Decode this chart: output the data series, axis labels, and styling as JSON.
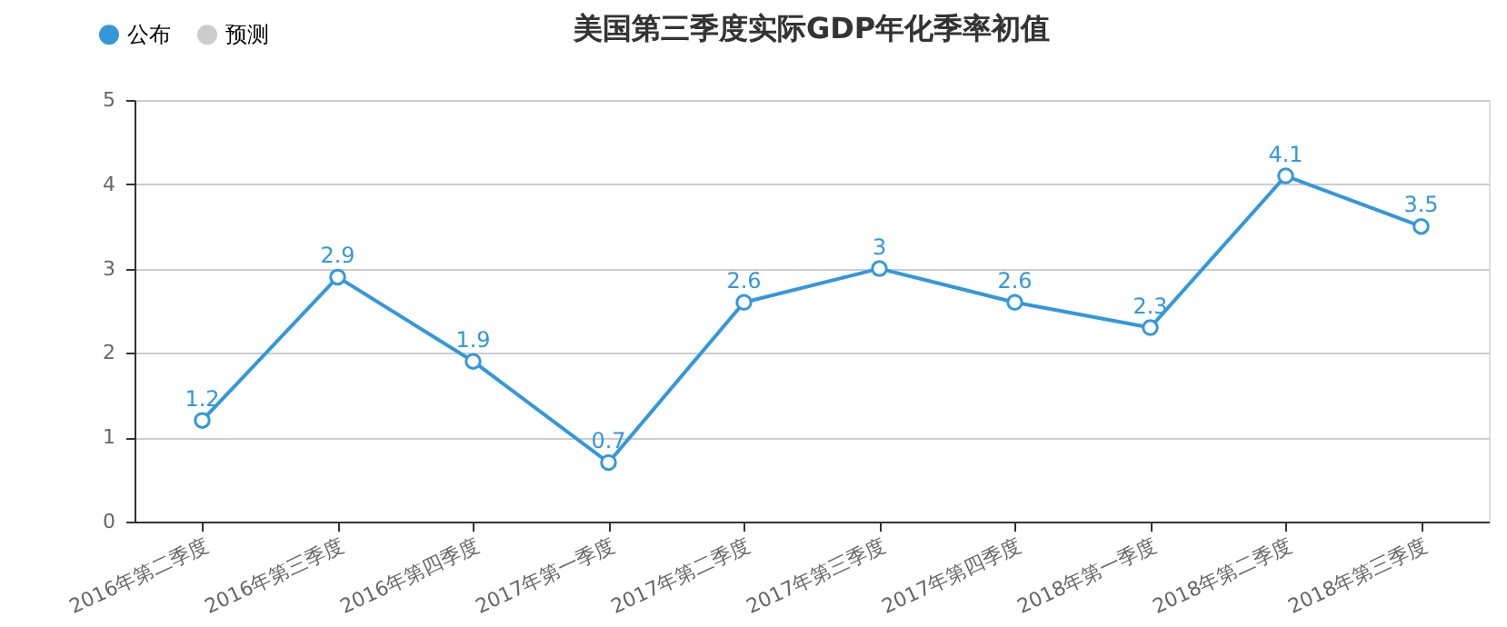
{
  "chart_data": {
    "type": "line",
    "title": "美国第三季度实际GDP年化季率初值",
    "categories": [
      "2016年第二季度",
      "2016年第三季度",
      "2016年第四季度",
      "2017年第一季度",
      "2017年第二季度",
      "2017年第三季度",
      "2017年第四季度",
      "2018年第一季度",
      "2018年第二季度",
      "2018年第三季度"
    ],
    "series": [
      {
        "name": "公布",
        "color": "#3398db",
        "values": [
          1.2,
          2.9,
          1.9,
          0.7,
          2.6,
          3,
          2.6,
          2.3,
          4.1,
          3.5
        ]
      },
      {
        "name": "预测",
        "color": "#cccccc",
        "values": [
          null,
          null,
          null,
          null,
          null,
          null,
          null,
          null,
          null,
          null
        ]
      }
    ],
    "ylim": [
      0,
      5
    ],
    "yticks": [
      0,
      1,
      2,
      3,
      4,
      5
    ],
    "grid": "y",
    "legend": "top left",
    "marker": "circle",
    "data_labels": true
  }
}
